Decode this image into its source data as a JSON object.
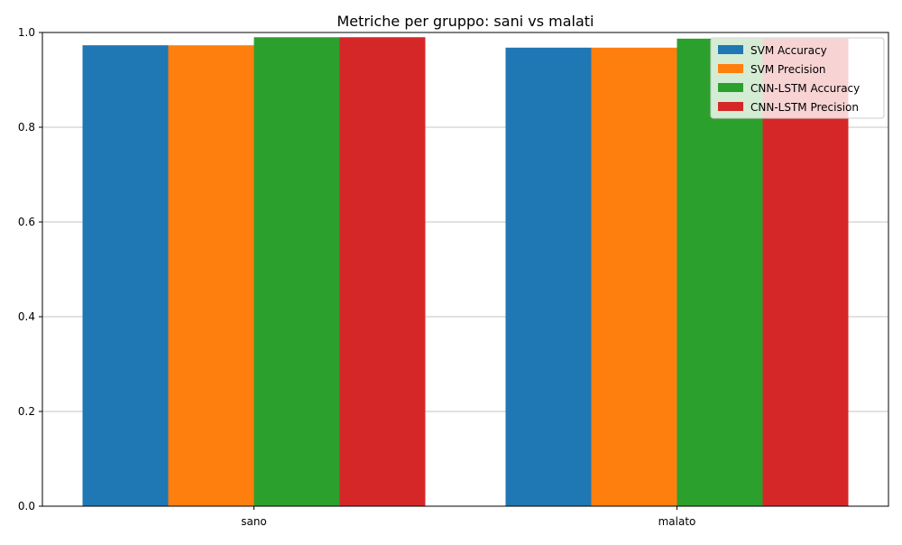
{
  "chart_data": {
    "type": "bar",
    "title": "Metriche per gruppo: sani vs malati",
    "xlabel": "",
    "ylabel": "",
    "categories": [
      "sano",
      "malato"
    ],
    "series": [
      {
        "name": "SVM Accuracy",
        "color": "#1f77b4",
        "values": [
          0.973,
          0.968
        ]
      },
      {
        "name": "SVM Precision",
        "color": "#ff7f0e",
        "values": [
          0.973,
          0.968
        ]
      },
      {
        "name": "CNN-LSTM Accuracy",
        "color": "#2ca02c",
        "values": [
          0.99,
          0.987
        ]
      },
      {
        "name": "CNN-LSTM Precision",
        "color": "#d62728",
        "values": [
          0.99,
          0.987
        ]
      }
    ],
    "ylim": [
      0,
      1.0
    ],
    "yticks": [
      "0.0",
      "0.2",
      "0.4",
      "0.6",
      "0.8",
      "1.0"
    ],
    "grid": "y",
    "legend_position": "top-right"
  }
}
